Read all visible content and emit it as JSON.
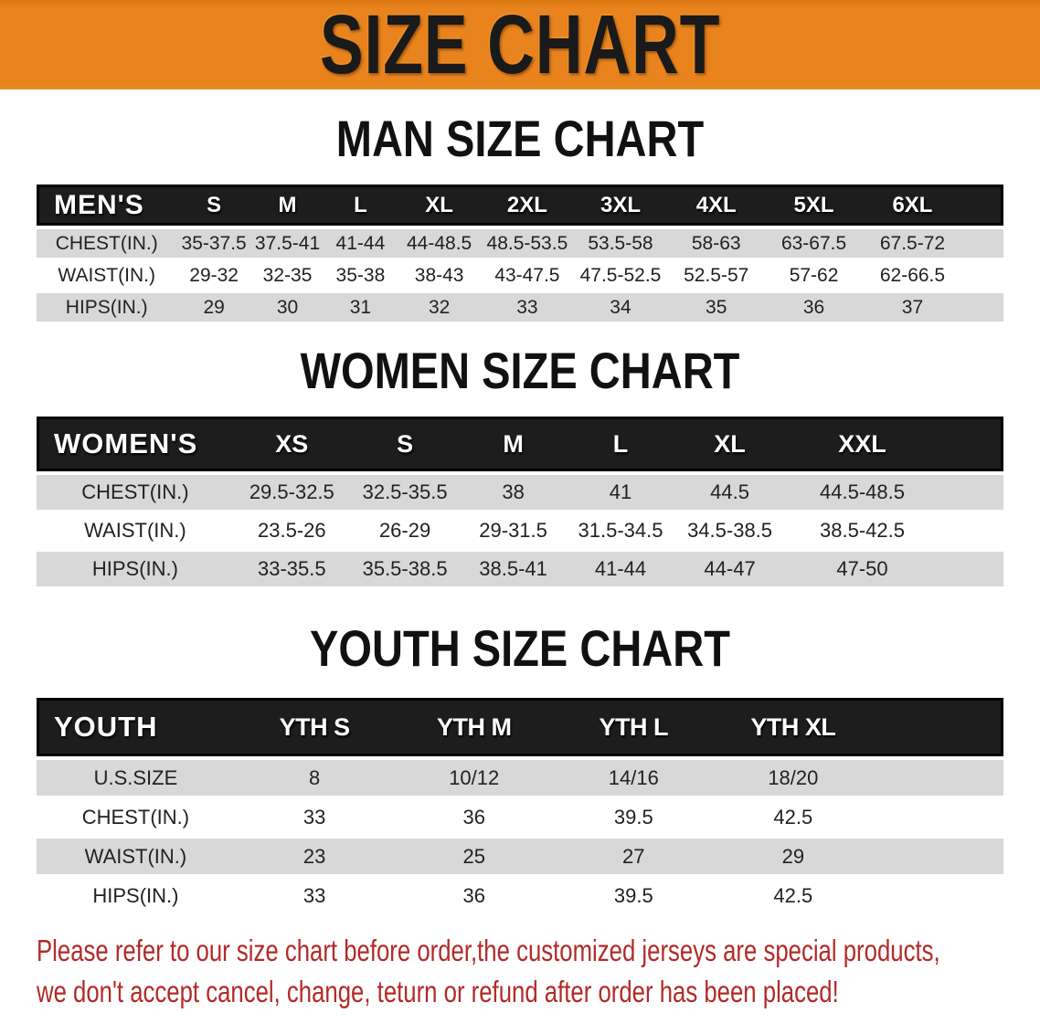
{
  "banner": {
    "title": "SIZE CHART"
  },
  "sections": [
    {
      "id": "men",
      "heading": "MAN SIZE CHART",
      "corner_label": "MEN'S",
      "columns": [
        "S",
        "M",
        "L",
        "XL",
        "2XL",
        "3XL",
        "4XL",
        "5XL",
        "6XL"
      ],
      "rows": [
        {
          "label": "CHEST(IN.)",
          "values": [
            "35-37.5",
            "37.5-41",
            "41-44",
            "44-48.5",
            "48.5-53.5",
            "53.5-58",
            "58-63",
            "63-67.5",
            "67.5-72"
          ]
        },
        {
          "label": "WAIST(IN.)",
          "values": [
            "29-32",
            "32-35",
            "35-38",
            "38-43",
            "43-47.5",
            "47.5-52.5",
            "52.5-57",
            "57-62",
            "62-66.5"
          ]
        },
        {
          "label": "HIPS(IN.)",
          "values": [
            "29",
            "30",
            "31",
            "32",
            "33",
            "34",
            "35",
            "36",
            "37"
          ]
        }
      ]
    },
    {
      "id": "women",
      "heading": "WOMEN SIZE CHART",
      "corner_label": "WOMEN'S",
      "columns": [
        "XS",
        "S",
        "M",
        "L",
        "XL",
        "XXL"
      ],
      "rows": [
        {
          "label": "CHEST(IN.)",
          "values": [
            "29.5-32.5",
            "32.5-35.5",
            "38",
            "41",
            "44.5",
            "44.5-48.5"
          ]
        },
        {
          "label": "WAIST(IN.)",
          "values": [
            "23.5-26",
            "26-29",
            "29-31.5",
            "31.5-34.5",
            "34.5-38.5",
            "38.5-42.5"
          ]
        },
        {
          "label": "HIPS(IN.)",
          "values": [
            "33-35.5",
            "35.5-38.5",
            "38.5-41",
            "41-44",
            "44-47",
            "47-50"
          ]
        }
      ]
    },
    {
      "id": "youth",
      "heading": "YOUTH SIZE CHART",
      "corner_label": "YOUTH",
      "columns": [
        "YTH S",
        "YTH M",
        "YTH L",
        "YTH XL"
      ],
      "rows": [
        {
          "label": "U.S.SIZE",
          "values": [
            "8",
            "10/12",
            "14/16",
            "18/20"
          ]
        },
        {
          "label": "CHEST(IN.)",
          "values": [
            "33",
            "36",
            "39.5",
            "42.5"
          ]
        },
        {
          "label": "WAIST(IN.)",
          "values": [
            "23",
            "25",
            "27",
            "29"
          ]
        },
        {
          "label": "HIPS(IN.)",
          "values": [
            "33",
            "36",
            "39.5",
            "42.5"
          ]
        }
      ]
    }
  ],
  "disclaimer": {
    "line1": "Please refer to our size chart before order,the customized jerseys are special products,",
    "line2": "we don't accept cancel, change, teturn or refund after order has been placed!"
  },
  "colors": {
    "banner_bg": "#E8831E",
    "header_bg": "#1D1D1D",
    "header_border": "#000000",
    "stripe": "#D8D8D8",
    "heading_text": "#111111",
    "body_text": "#222222",
    "disclaimer_text": "#B22B28"
  }
}
